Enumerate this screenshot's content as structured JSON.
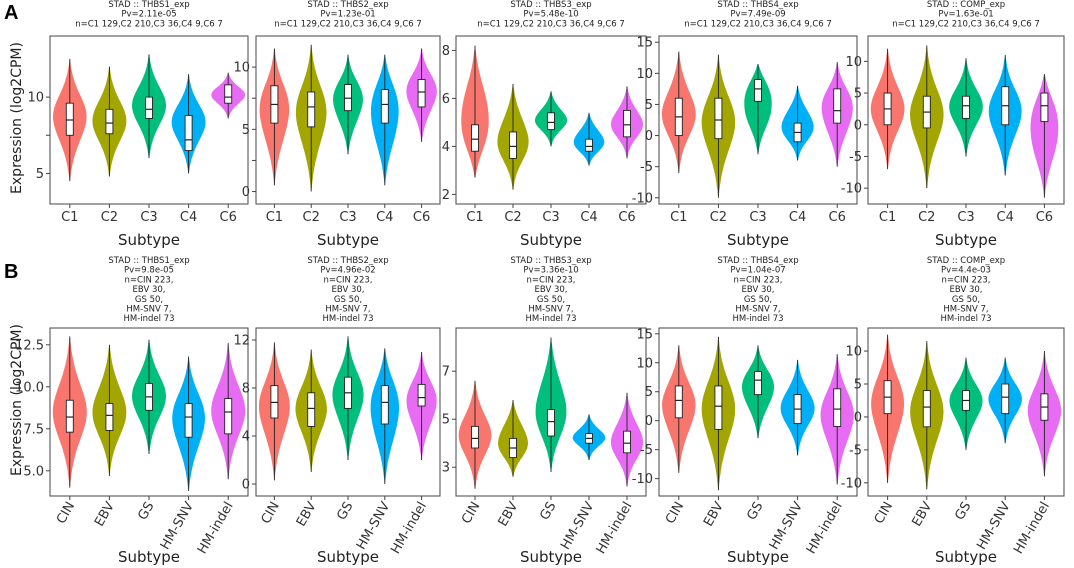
{
  "panel_labels": {
    "a": "A",
    "b": "B"
  },
  "ylabel": "Expression (log2CPM)",
  "chart_data": [
    {
      "type": "violin",
      "panel": "A",
      "title": [
        "STAD :: THBS1_exp",
        "Pv=2.11e-05",
        "n=C1 129,C2 210,C3 36,C4 9,C6 7"
      ],
      "xlabel": "Subtype",
      "ylabel": "Expression (log2CPM)",
      "categories": [
        "C1",
        "C2",
        "C3",
        "C4",
        "C6"
      ],
      "yticks": [
        5,
        7.5,
        10
      ],
      "ytick_labels": [
        "5",
        "",
        "10"
      ],
      "ylim": [
        3,
        14
      ],
      "distributions": [
        {
          "min": 4.5,
          "q1": 7.5,
          "median": 8.5,
          "q3": 9.6,
          "max": 12.5,
          "mode": 9
        },
        {
          "min": 4.8,
          "q1": 7.6,
          "median": 8.3,
          "q3": 9.2,
          "max": 12,
          "mode": 8.5
        },
        {
          "min": 6,
          "q1": 8.6,
          "median": 9.2,
          "q3": 10,
          "max": 12.8,
          "mode": 9.5
        },
        {
          "min": 5,
          "q1": 6.5,
          "median": 7.2,
          "q3": 8.8,
          "max": 11.5,
          "mode": 8.5
        },
        {
          "min": 8.6,
          "q1": 9.6,
          "median": 10,
          "q3": 10.8,
          "max": 11.6,
          "mode": 10.2
        }
      ]
    },
    {
      "type": "violin",
      "panel": "A",
      "title": [
        "STAD :: THBS2_exp",
        "Pv=1.23e-01",
        "n=C1 129,C2 210,C3 36,C4 9,C6 7"
      ],
      "xlabel": "Subtype",
      "ylabel": "",
      "categories": [
        "C1",
        "C2",
        "C3",
        "C4",
        "C6"
      ],
      "yticks": [
        0,
        2.5,
        5,
        7.5,
        10
      ],
      "ytick_labels": [
        "0",
        "",
        "5",
        "",
        "10"
      ],
      "ylim": [
        -1,
        12.5
      ],
      "distributions": [
        {
          "min": 0.5,
          "q1": 5.5,
          "median": 7,
          "q3": 8.5,
          "max": 11.5,
          "mode": 7.5
        },
        {
          "min": 0,
          "q1": 5.2,
          "median": 6.8,
          "q3": 8,
          "max": 11.8,
          "mode": 7
        },
        {
          "min": 3,
          "q1": 6.5,
          "median": 7.5,
          "q3": 8.6,
          "max": 11,
          "mode": 8
        },
        {
          "min": 0.5,
          "q1": 5.5,
          "median": 7,
          "q3": 8.2,
          "max": 11,
          "mode": 7.8
        },
        {
          "min": 4,
          "q1": 6.8,
          "median": 8,
          "q3": 9,
          "max": 11.5,
          "mode": 8.5
        }
      ]
    },
    {
      "type": "violin",
      "panel": "A",
      "title": [
        "STAD :: THBS3_exp",
        "Pv=5.48e-10",
        "n=C1 129,C2 210,C3 36,C4 9,C6 7"
      ],
      "xlabel": "Subtype",
      "ylabel": "",
      "categories": [
        "C1",
        "C2",
        "C3",
        "C4",
        "C6"
      ],
      "yticks": [
        2,
        4,
        6,
        8
      ],
      "ytick_labels": [
        "2",
        "4",
        "6",
        "8"
      ],
      "ylim": [
        1.6,
        8.6
      ],
      "distributions": [
        {
          "min": 2.7,
          "q1": 3.8,
          "median": 4.3,
          "q3": 4.9,
          "max": 8.2,
          "mode": 4.2
        },
        {
          "min": 2.2,
          "q1": 3.5,
          "median": 4,
          "q3": 4.6,
          "max": 6.6,
          "mode": 3.9
        },
        {
          "min": 4,
          "q1": 4.7,
          "median": 5,
          "q3": 5.4,
          "max": 6.3,
          "mode": 5
        },
        {
          "min": 3.2,
          "q1": 3.8,
          "median": 4,
          "q3": 4.3,
          "max": 5.4,
          "mode": 4
        },
        {
          "min": 3.5,
          "q1": 4.4,
          "median": 4.9,
          "q3": 5.5,
          "max": 6.5,
          "mode": 4.8
        }
      ]
    },
    {
      "type": "violin",
      "panel": "A",
      "title": [
        "STAD :: THBS4_exp",
        "Pv=7.49e-09",
        "n=C1 129,C2 210,C3 36,C4 9,C6 7"
      ],
      "xlabel": "Subtype",
      "ylabel": "",
      "categories": [
        "C1",
        "C2",
        "C3",
        "C4",
        "C6"
      ],
      "yticks": [
        -10,
        -5,
        0,
        5,
        10,
        15
      ],
      "ytick_labels": [
        "-10",
        "-5",
        "0",
        "5",
        "10",
        "15"
      ],
      "ylim": [
        -11,
        16
      ],
      "distributions": [
        {
          "min": -6,
          "q1": 0,
          "median": 3,
          "q3": 6,
          "max": 13.5,
          "mode": 3
        },
        {
          "min": -10,
          "q1": -0.5,
          "median": 2.5,
          "q3": 6,
          "max": 13,
          "mode": 3
        },
        {
          "min": -3,
          "q1": 5.5,
          "median": 7.5,
          "q3": 9,
          "max": 11.5,
          "mode": 8
        },
        {
          "min": -4,
          "q1": -1,
          "median": 0.5,
          "q3": 2,
          "max": 8,
          "mode": 0.5
        },
        {
          "min": -5,
          "q1": 2,
          "median": 4,
          "q3": 7.5,
          "max": 11.8,
          "mode": 6
        }
      ]
    },
    {
      "type": "violin",
      "panel": "A",
      "title": [
        "STAD :: COMP_exp",
        "Pv=1.63e-01",
        "n=C1 129,C2 210,C3 36,C4 9,C6 7"
      ],
      "xlabel": "Subtype",
      "ylabel": "",
      "categories": [
        "C1",
        "C2",
        "C3",
        "C4",
        "C6"
      ],
      "yticks": [
        -10,
        -5,
        0,
        5,
        10
      ],
      "ytick_labels": [
        "-10",
        "-5",
        "0",
        "5",
        "10"
      ],
      "ylim": [
        -12.5,
        14
      ],
      "distributions": [
        {
          "min": -7,
          "q1": 0,
          "median": 2.5,
          "q3": 5,
          "max": 12,
          "mode": 2.5
        },
        {
          "min": -10,
          "q1": -0.5,
          "median": 2,
          "q3": 4.5,
          "max": 12.5,
          "mode": 2
        },
        {
          "min": -5,
          "q1": 1,
          "median": 3,
          "q3": 4.5,
          "max": 10.5,
          "mode": 3
        },
        {
          "min": -8,
          "q1": 0,
          "median": 3,
          "q3": 6,
          "max": 11,
          "mode": 3
        },
        {
          "min": -11.5,
          "q1": 0.5,
          "median": 3,
          "q3": 5,
          "max": 8,
          "mode": 3
        }
      ]
    },
    {
      "type": "violin",
      "panel": "B",
      "title": [
        "STAD :: THBS1_exp",
        "Pv=9.8e-05",
        "n=CIN 223,",
        "EBV 30,",
        "GS 50,",
        "HM-SNV 7,",
        "HM-indel 73"
      ],
      "xlabel": "Subtype",
      "ylabel": "Expression (log2CPM)",
      "categories": [
        "CIN",
        "EBV",
        "GS",
        "HM-SNV",
        "HM-indel"
      ],
      "yticks": [
        5,
        7.5,
        10,
        12.5
      ],
      "ytick_labels": [
        "5.0",
        "7.5",
        "10.0",
        "12.5"
      ],
      "ylim": [
        3.5,
        13.5
      ],
      "distributions": [
        {
          "min": 4,
          "q1": 7.3,
          "median": 8.2,
          "q3": 9.2,
          "max": 13,
          "mode": 8.5
        },
        {
          "min": 4.7,
          "q1": 7.4,
          "median": 8.3,
          "q3": 9,
          "max": 12.5,
          "mode": 8.3
        },
        {
          "min": 6,
          "q1": 8.6,
          "median": 9.4,
          "q3": 10.2,
          "max": 12.8,
          "mode": 9.5
        },
        {
          "min": 3.8,
          "q1": 7,
          "median": 8.2,
          "q3": 9,
          "max": 11.8,
          "mode": 8.6
        },
        {
          "min": 4.5,
          "q1": 7.2,
          "median": 8.5,
          "q3": 9.3,
          "max": 12.6,
          "mode": 8.6
        }
      ]
    },
    {
      "type": "violin",
      "panel": "B",
      "title": [
        "STAD :: THBS2_exp",
        "Pv=4.96e-02",
        "n=CIN 223,",
        "EBV 30,",
        "GS 50,",
        "HM-SNV 7,",
        "HM-indel 73"
      ],
      "xlabel": "Subtype",
      "ylabel": "",
      "categories": [
        "CIN",
        "EBV",
        "GS",
        "HM-SNV",
        "HM-indel"
      ],
      "yticks": [
        0,
        4,
        8,
        12
      ],
      "ytick_labels": [
        "0",
        "4",
        "8",
        "12"
      ],
      "ylim": [
        -1,
        13
      ],
      "distributions": [
        {
          "min": 0.3,
          "q1": 5.5,
          "median": 6.8,
          "q3": 8.2,
          "max": 11.8,
          "mode": 7
        },
        {
          "min": 1,
          "q1": 4.8,
          "median": 6.3,
          "q3": 7.6,
          "max": 11.2,
          "mode": 6.5
        },
        {
          "min": 2,
          "q1": 6.3,
          "median": 7.6,
          "q3": 8.9,
          "max": 12.3,
          "mode": 7.8
        },
        {
          "min": 0,
          "q1": 5,
          "median": 6.8,
          "q3": 8.2,
          "max": 11.3,
          "mode": 7.6
        },
        {
          "min": 2,
          "q1": 6.5,
          "median": 7.2,
          "q3": 8.3,
          "max": 11,
          "mode": 7.5
        }
      ]
    },
    {
      "type": "violin",
      "panel": "B",
      "title": [
        "STAD :: THBS3_exp",
        "Pv=3.36e-10",
        "n=CIN 223,",
        "EBV 30,",
        "GS 50,",
        "HM-SNV 7,",
        "HM-indel 73"
      ],
      "xlabel": "Subtype",
      "ylabel": "",
      "categories": [
        "CIN",
        "EBV",
        "GS",
        "HM-SNV",
        "HM-indel"
      ],
      "yticks": [
        3,
        5,
        7
      ],
      "ytick_labels": [
        "3",
        "5",
        "7"
      ],
      "ylim": [
        1.8,
        8.8
      ],
      "distributions": [
        {
          "min": 2.1,
          "q1": 3.8,
          "median": 4.2,
          "q3": 4.7,
          "max": 6.6,
          "mode": 4.3
        },
        {
          "min": 2.6,
          "q1": 3.4,
          "median": 3.8,
          "q3": 4.2,
          "max": 5.8,
          "mode": 3.7
        },
        {
          "min": 2.8,
          "q1": 4.3,
          "median": 4.9,
          "q3": 5.4,
          "max": 8.4,
          "mode": 4.9
        },
        {
          "min": 3.3,
          "q1": 4,
          "median": 4.2,
          "q3": 4.4,
          "max": 5.2,
          "mode": 4.2
        },
        {
          "min": 2.2,
          "q1": 3.6,
          "median": 4,
          "q3": 4.5,
          "max": 6.1,
          "mode": 3.9
        }
      ]
    },
    {
      "type": "violin",
      "panel": "B",
      "title": [
        "STAD :: THBS4_exp",
        "Pv=1.04e-07",
        "n=CIN 223,",
        "EBV 30,",
        "GS 50,",
        "HM-SNV 7,",
        "HM-indel 73"
      ],
      "xlabel": "Subtype",
      "ylabel": "",
      "categories": [
        "CIN",
        "EBV",
        "GS",
        "HM-SNV",
        "HM-indel"
      ],
      "yticks": [
        -10,
        -5,
        0,
        5,
        10,
        15
      ],
      "ytick_labels": [
        "-10",
        "-5",
        "0",
        "5",
        "10",
        "15"
      ],
      "ylim": [
        -13,
        16
      ],
      "distributions": [
        {
          "min": -9,
          "q1": 0.5,
          "median": 3.5,
          "q3": 6,
          "max": 13,
          "mode": 3.5
        },
        {
          "min": -12,
          "q1": -1.5,
          "median": 2.5,
          "q3": 6,
          "max": 14.5,
          "mode": 3
        },
        {
          "min": -3,
          "q1": 4.5,
          "median": 7,
          "q3": 8.5,
          "max": 13,
          "mode": 7
        },
        {
          "min": -6,
          "q1": -0.5,
          "median": 2,
          "q3": 4.5,
          "max": 10.5,
          "mode": 2
        },
        {
          "min": -11,
          "q1": -1,
          "median": 2,
          "q3": 5.5,
          "max": 11.5,
          "mode": 2
        }
      ]
    },
    {
      "type": "violin",
      "panel": "B",
      "title": [
        "STAD :: COMP_exp",
        "Pv=4.4e-03",
        "n=CIN 223,",
        "EBV 30,",
        "GS 50,",
        "HM-SNV 7,",
        "HM-indel 73"
      ],
      "xlabel": "Subtype",
      "ylabel": "",
      "categories": [
        "CIN",
        "EBV",
        "GS",
        "HM-SNV",
        "HM-indel"
      ],
      "yticks": [
        -10,
        -5,
        0,
        5,
        10
      ],
      "ytick_labels": [
        "-10",
        "-5",
        "0",
        "5",
        "10"
      ],
      "ylim": [
        -12,
        13.5
      ],
      "distributions": [
        {
          "min": -10,
          "q1": 0.5,
          "median": 3,
          "q3": 5.5,
          "max": 12.5,
          "mode": 3
        },
        {
          "min": -11,
          "q1": -1.5,
          "median": 1.5,
          "q3": 4,
          "max": 11.5,
          "mode": 1.5
        },
        {
          "min": -5,
          "q1": 1,
          "median": 2.5,
          "q3": 4,
          "max": 9,
          "mode": 3
        },
        {
          "min": -4,
          "q1": 0.5,
          "median": 3,
          "q3": 5,
          "max": 9,
          "mode": 3
        },
        {
          "min": -9,
          "q1": -0.5,
          "median": 1.5,
          "q3": 3.5,
          "max": 10,
          "mode": 1.5
        }
      ]
    }
  ],
  "colors": {
    "c1": "#f8766d",
    "c2": "#a3a500",
    "c3": "#00bf7d",
    "c4": "#00b0f6",
    "c5": "#e76bf3"
  }
}
